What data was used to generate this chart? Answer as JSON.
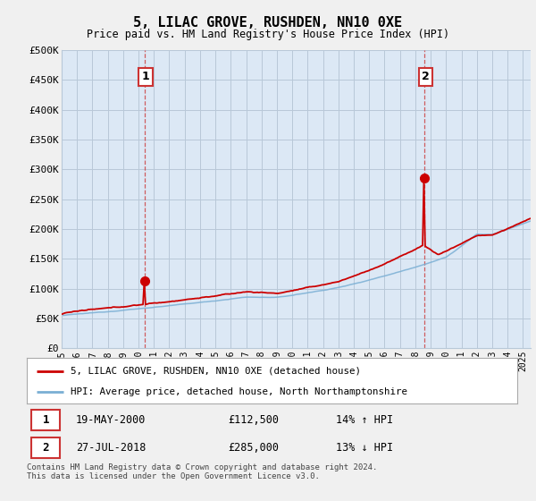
{
  "title": "5, LILAC GROVE, RUSHDEN, NN10 0XE",
  "subtitle": "Price paid vs. HM Land Registry's House Price Index (HPI)",
  "ylabel_ticks": [
    "£0",
    "£50K",
    "£100K",
    "£150K",
    "£200K",
    "£250K",
    "£300K",
    "£350K",
    "£400K",
    "£450K",
    "£500K"
  ],
  "ytick_vals": [
    0,
    50000,
    100000,
    150000,
    200000,
    250000,
    300000,
    350000,
    400000,
    450000,
    500000
  ],
  "ylim": [
    0,
    500000
  ],
  "xlim_start": 1995.0,
  "xlim_end": 2025.5,
  "sale1_x": 2000.38,
  "sale1_y": 112500,
  "sale2_x": 2018.57,
  "sale2_y": 285000,
  "red_color": "#cc0000",
  "blue_color": "#7aafd4",
  "plot_bg_color": "#dce8f5",
  "bg_color": "#f0f0f0",
  "grid_color": "#b8c8d8",
  "annotation_box_color": "#cc3333",
  "legend_bg_color": "#ffffff",
  "legend_border_color": "#aaaaaa",
  "legend_label_red": "5, LILAC GROVE, RUSHDEN, NN10 0XE (detached house)",
  "legend_label_blue": "HPI: Average price, detached house, North Northamptonshire",
  "table_row1": [
    "1",
    "19-MAY-2000",
    "£112,500",
    "14% ↑ HPI"
  ],
  "table_row2": [
    "2",
    "27-JUL-2018",
    "£285,000",
    "13% ↓ HPI"
  ],
  "footer": "Contains HM Land Registry data © Crown copyright and database right 2024.\nThis data is licensed under the Open Government Licence v3.0.",
  "xtick_years": [
    1995,
    1996,
    1997,
    1998,
    1999,
    2000,
    2001,
    2002,
    2003,
    2004,
    2005,
    2006,
    2007,
    2008,
    2009,
    2010,
    2011,
    2012,
    2013,
    2014,
    2015,
    2016,
    2017,
    2018,
    2019,
    2020,
    2021,
    2022,
    2023,
    2024,
    2025
  ]
}
